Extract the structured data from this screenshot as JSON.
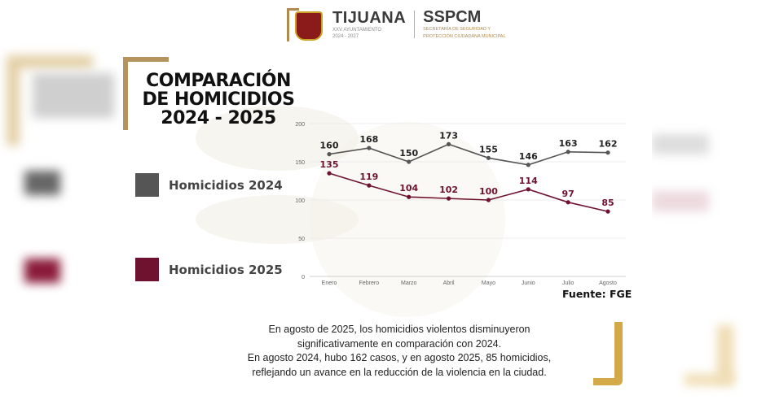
{
  "header": {
    "city_name": "TIJUANA",
    "city_sub1": "XXV AYUNTAMIENTO",
    "city_sub2": "2024 - 2027",
    "agency_name": "SSPCM",
    "agency_sub1": "SECRETARÍA DE SEGURIDAD Y",
    "agency_sub2": "PROTECCIÓN CIUDADANA MUNICIPAL"
  },
  "title_lines": [
    "COMPARACIÓN",
    "DE HOMICIDIOS",
    "2024 - 2025"
  ],
  "legend": [
    {
      "label": "Homicidios 2024",
      "color": "#555555"
    },
    {
      "label": "Homicidios 2025",
      "color": "#6e1230"
    }
  ],
  "source": "Fuente: FGE",
  "description_lines": [
    "En agosto de 2025, los homicidios violentos disminuyeron",
    "significativamente en comparación con 2024.",
    "En agosto 2024, hubo 162 casos, y en agosto 2025, 85 homicidios,",
    "reflejando un avance en la reducción de la violencia en la ciudad."
  ],
  "chart_data": {
    "type": "line",
    "title": "COMPARACIÓN DE HOMICIDIOS 2024 - 2025",
    "xlabel": "",
    "ylabel": "",
    "categories": [
      "Enero",
      "Febrero",
      "Marzo",
      "Abril",
      "Mayo",
      "Junio",
      "Julio",
      "Agosto"
    ],
    "ylim": [
      0,
      200
    ],
    "yticks": [
      0,
      50,
      100,
      150,
      200
    ],
    "grid": true,
    "legend_position": "left",
    "series": [
      {
        "name": "Homicidios 2024",
        "color": "#555555",
        "values": [
          160,
          168,
          150,
          173,
          155,
          146,
          163,
          162
        ]
      },
      {
        "name": "Homicidios 2025",
        "color": "#6e1230",
        "values": [
          135,
          119,
          104,
          102,
          100,
          114,
          97,
          85
        ]
      }
    ]
  }
}
